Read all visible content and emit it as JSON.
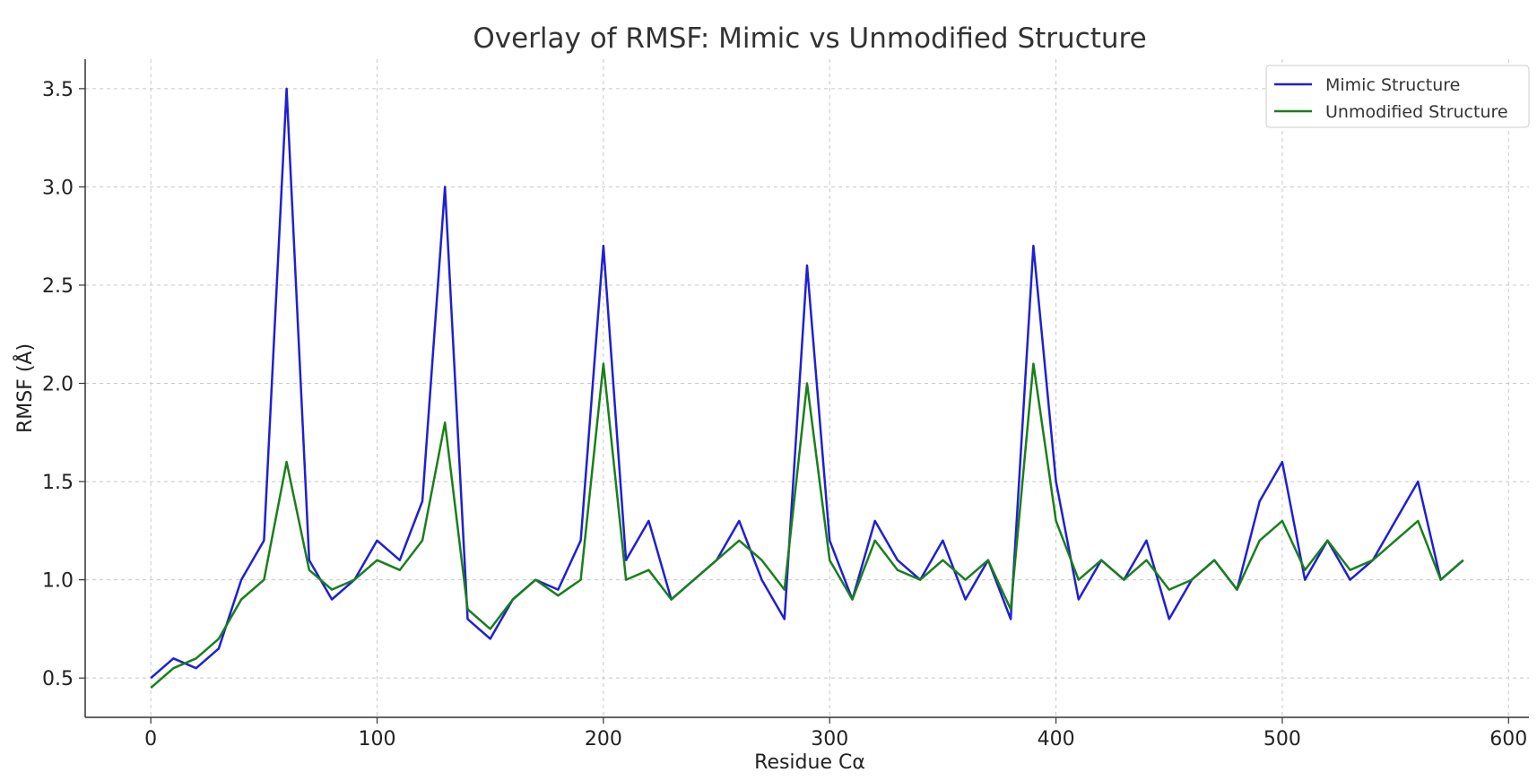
{
  "chart_data": {
    "type": "line",
    "title": "Overlay of RMSF: Mimic vs Unmodified Structure",
    "xlabel": "Residue Cα",
    "ylabel": "RMSF (Å)",
    "xlim": [
      -29,
      609
    ],
    "ylim": [
      0.3,
      3.65
    ],
    "xticks": [
      0,
      100,
      200,
      300,
      400,
      500,
      600
    ],
    "yticks": [
      0.5,
      1.0,
      1.5,
      2.0,
      2.5,
      3.0,
      3.5
    ],
    "xtick_labels": [
      "0",
      "100",
      "200",
      "300",
      "400",
      "500",
      "600"
    ],
    "ytick_labels": [
      "0.5",
      "1.0",
      "1.5",
      "2.0",
      "2.5",
      "3.0",
      "3.5"
    ],
    "grid": true,
    "legend_position": "top-right",
    "x": [
      0,
      10,
      20,
      30,
      40,
      50,
      60,
      70,
      80,
      90,
      100,
      110,
      120,
      130,
      140,
      150,
      160,
      170,
      180,
      190,
      200,
      210,
      220,
      230,
      240,
      250,
      260,
      270,
      280,
      290,
      300,
      310,
      320,
      330,
      340,
      350,
      360,
      370,
      380,
      390,
      400,
      410,
      420,
      430,
      440,
      450,
      460,
      470,
      480,
      490,
      500,
      510,
      520,
      530,
      540,
      550,
      560,
      570,
      580
    ],
    "series": [
      {
        "name": "Mimic Structure",
        "color": "#1f1fd6",
        "values": [
          0.5,
          0.6,
          0.55,
          0.65,
          1.0,
          1.2,
          3.5,
          1.1,
          0.9,
          1.0,
          1.2,
          1.1,
          1.4,
          3.0,
          0.8,
          0.7,
          0.9,
          1.0,
          0.95,
          1.2,
          2.7,
          1.1,
          1.3,
          0.9,
          1.0,
          1.1,
          1.3,
          1.0,
          0.8,
          2.6,
          1.2,
          0.9,
          1.3,
          1.1,
          1.0,
          1.2,
          0.9,
          1.1,
          0.8,
          2.7,
          1.5,
          0.9,
          1.1,
          1.0,
          1.2,
          0.8,
          1.0,
          1.1,
          0.95,
          1.4,
          1.6,
          1.0,
          1.2,
          1.0,
          1.1,
          1.3,
          1.5,
          1.0,
          1.1
        ]
      },
      {
        "name": "Unmodified Structure",
        "color": "#1a7f1a",
        "values": [
          0.45,
          0.55,
          0.6,
          0.7,
          0.9,
          1.0,
          1.6,
          1.05,
          0.95,
          1.0,
          1.1,
          1.05,
          1.2,
          1.8,
          0.85,
          0.75,
          0.9,
          1.0,
          0.92,
          1.0,
          2.1,
          1.0,
          1.05,
          0.9,
          1.0,
          1.1,
          1.2,
          1.1,
          0.95,
          2.0,
          1.1,
          0.9,
          1.2,
          1.05,
          1.0,
          1.1,
          1.0,
          1.1,
          0.85,
          2.1,
          1.3,
          1.0,
          1.1,
          1.0,
          1.1,
          0.95,
          1.0,
          1.1,
          0.95,
          1.2,
          1.3,
          1.05,
          1.2,
          1.05,
          1.1,
          1.2,
          1.3,
          1.0,
          1.1
        ]
      }
    ]
  }
}
